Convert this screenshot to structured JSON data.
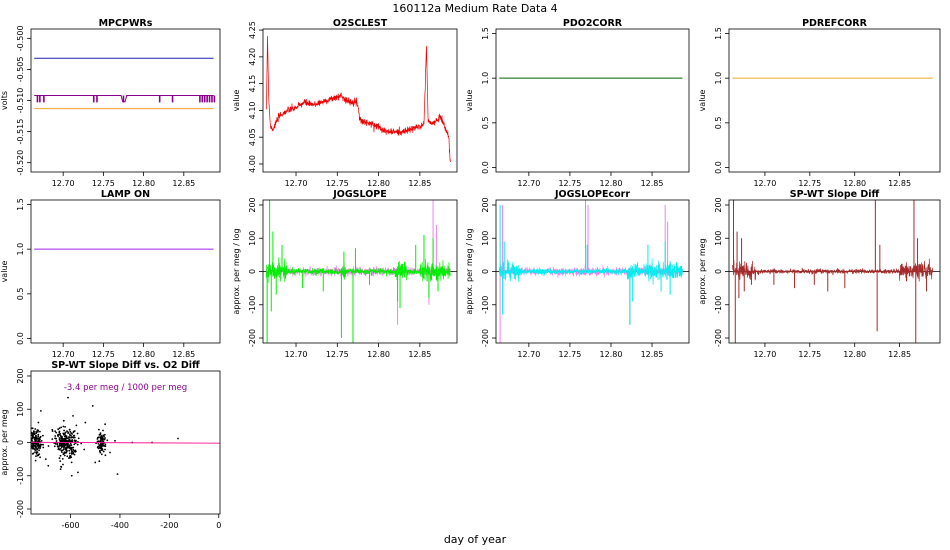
{
  "figure": {
    "title": "160112a   Medium Rate Data 4",
    "xlabel": "day of year"
  },
  "chart_data": [
    {
      "id": "mpcpwrs",
      "type": "line",
      "title": "MPCPWRs",
      "ylabel": "volts",
      "xlim": [
        12.66,
        12.895
      ],
      "ylim": [
        -0.5215,
        -0.4985
      ],
      "xticks": [
        12.7,
        12.75,
        12.8,
        12.85
      ],
      "xticklabels": [
        "12.70",
        "12.75",
        "12.80",
        "12.85"
      ],
      "yticks": [
        -0.52,
        -0.515,
        -0.51,
        -0.505,
        -0.5
      ],
      "yticklabels": [
        "-0.520",
        "-0.515",
        "-0.510",
        "-0.505",
        "-0.500"
      ],
      "series": [
        {
          "color": "#2222bb",
          "style": "flat",
          "value": -0.5032
        },
        {
          "color": "#f5a623",
          "style": "flat",
          "value": -0.5113
        },
        {
          "color": "#8b008b",
          "style": "flat_spikes",
          "value": -0.5092,
          "spike_to": -0.5103,
          "dip": [
            12.772,
            12.779,
            -0.5102
          ],
          "spikes": [
            12.668,
            12.671,
            12.676,
            12.738,
            12.742,
            12.775,
            12.82,
            12.836,
            12.87,
            12.873,
            12.876,
            12.879,
            12.882,
            12.885,
            12.888
          ]
        }
      ]
    },
    {
      "id": "o2sclest",
      "type": "line",
      "title": "O2SCLEST",
      "ylabel": "value",
      "xlim": [
        12.66,
        12.895
      ],
      "ylim": [
        3.985,
        4.252
      ],
      "xticks": [
        12.7,
        12.75,
        12.8,
        12.85
      ],
      "xticklabels": [
        "12.70",
        "12.75",
        "12.80",
        "12.85"
      ],
      "yticks": [
        4.0,
        4.05,
        4.1,
        4.15,
        4.2,
        4.25
      ],
      "yticklabels": [
        "4.00",
        "4.05",
        "4.10",
        "4.15",
        "4.20",
        "4.25"
      ],
      "series": [
        {
          "color": "#ee0000",
          "style": "noisy",
          "noise": 0.007,
          "x": [
            12.664,
            12.6655,
            12.667,
            12.669,
            12.672,
            12.68,
            12.69,
            12.7,
            12.71,
            12.72,
            12.73,
            12.74,
            12.75,
            12.755,
            12.76,
            12.765,
            12.77,
            12.775,
            12.777,
            12.78,
            12.79,
            12.8,
            12.81,
            12.82,
            12.83,
            12.84,
            12.85,
            12.855,
            12.858,
            12.86,
            12.865,
            12.87,
            12.875,
            12.88,
            12.885,
            12.887
          ],
          "y": [
            4.09,
            4.24,
            4.12,
            4.07,
            4.065,
            4.09,
            4.1,
            4.105,
            4.115,
            4.11,
            4.115,
            4.12,
            4.125,
            4.128,
            4.12,
            4.115,
            4.118,
            4.112,
            4.085,
            4.08,
            4.075,
            4.07,
            4.06,
            4.06,
            4.06,
            4.065,
            4.07,
            4.075,
            4.22,
            4.08,
            4.075,
            4.08,
            4.09,
            4.07,
            4.05,
            4.0
          ]
        }
      ]
    },
    {
      "id": "pdo2corr",
      "type": "line",
      "title": "PDO2CORR",
      "ylabel": "value",
      "xlim": [
        12.66,
        12.895
      ],
      "ylim": [
        -0.05,
        1.55
      ],
      "xticks": [
        12.7,
        12.75,
        12.8,
        12.85
      ],
      "xticklabels": [
        "12.70",
        "12.75",
        "12.80",
        "12.85"
      ],
      "yticks": [
        0.0,
        0.5,
        1.0,
        1.5
      ],
      "yticklabels": [
        "0.0",
        "0.5",
        "1.0",
        "1.5"
      ],
      "series": [
        {
          "color": "#006400",
          "style": "flat",
          "value": 1.0
        }
      ]
    },
    {
      "id": "pdrefcorr",
      "type": "line",
      "title": "PDREFCORR",
      "ylabel": "value",
      "xlim": [
        12.66,
        12.895
      ],
      "ylim": [
        -0.05,
        1.55
      ],
      "xticks": [
        12.7,
        12.75,
        12.8,
        12.85
      ],
      "xticklabels": [
        "12.70",
        "12.75",
        "12.80",
        "12.85"
      ],
      "yticks": [
        0.0,
        0.5,
        1.0,
        1.5
      ],
      "yticklabels": [
        "0.0",
        "0.5",
        "1.0",
        "1.5"
      ],
      "series": [
        {
          "color": "#f5a623",
          "style": "flat",
          "value": 1.0
        }
      ]
    },
    {
      "id": "lampon",
      "type": "line",
      "title": "LAMP ON",
      "ylabel": "value",
      "xlim": [
        12.66,
        12.895
      ],
      "ylim": [
        -0.05,
        1.55
      ],
      "xticks": [
        12.7,
        12.75,
        12.8,
        12.85
      ],
      "xticklabels": [
        "12.70",
        "12.75",
        "12.80",
        "12.85"
      ],
      "yticks": [
        0.0,
        0.5,
        1.0,
        1.5
      ],
      "yticklabels": [
        "0.0",
        "0.5",
        "1.0",
        "1.5"
      ],
      "series": [
        {
          "color": "#a020f0",
          "style": "flat",
          "value": 1.0
        }
      ]
    },
    {
      "id": "jogslope",
      "type": "line",
      "title": "JOGSLOPE",
      "ylabel": "approx. per meg / log",
      "xlim": [
        12.66,
        12.895
      ],
      "ylim": [
        -215,
        215
      ],
      "xticks": [
        12.7,
        12.75,
        12.8,
        12.85
      ],
      "xticklabels": [
        "12.70",
        "12.75",
        "12.80",
        "12.85"
      ],
      "yticks": [
        -200,
        -100,
        0,
        100,
        200
      ],
      "yticklabels": [
        "-200",
        "-100",
        "0",
        "100",
        "200"
      ],
      "zeroline": true,
      "series": [
        {
          "color": "#ee82ee",
          "style": "noisy",
          "noise": 14,
          "x": [
            12.664,
            12.887
          ],
          "y": [
            0,
            0
          ],
          "spikes": [
            [
              12.823,
              -160
            ],
            [
              12.861,
              -100
            ],
            [
              12.866,
              215
            ],
            [
              12.87,
              140
            ]
          ]
        },
        {
          "color": "#00ee00",
          "style": "noisy",
          "noise": 10,
          "x": [
            12.664,
            12.887
          ],
          "y": [
            0,
            0
          ],
          "bands": [
            [
              12.664,
              12.69,
              35
            ],
            [
              12.755,
              12.76,
              25
            ],
            [
              12.82,
              12.835,
              30
            ],
            [
              12.85,
              12.887,
              32
            ]
          ],
          "spikes": [
            [
              12.665,
              -215
            ],
            [
              12.668,
              215
            ],
            [
              12.67,
              -120
            ],
            [
              12.672,
              120
            ],
            [
              12.676,
              -70
            ],
            [
              12.683,
              80
            ],
            [
              12.708,
              -50
            ],
            [
              12.733,
              -60
            ],
            [
              12.755,
              -200
            ],
            [
              12.758,
              60
            ],
            [
              12.769,
              -215
            ],
            [
              12.772,
              70
            ],
            [
              12.789,
              -40
            ],
            [
              12.823,
              -90
            ],
            [
              12.826,
              -110
            ],
            [
              12.845,
              80
            ],
            [
              12.855,
              110
            ],
            [
              12.861,
              -80
            ],
            [
              12.866,
              100
            ],
            [
              12.872,
              -60
            ]
          ]
        }
      ]
    },
    {
      "id": "jogslopecorr",
      "type": "line",
      "title": "JOGSLOPEcorr",
      "ylabel": "approx. per meg / log",
      "xlim": [
        12.66,
        12.895
      ],
      "ylim": [
        -215,
        215
      ],
      "xticks": [
        12.7,
        12.75,
        12.8,
        12.85
      ],
      "xticklabels": [
        "12.70",
        "12.75",
        "12.80",
        "12.85"
      ],
      "yticks": [
        -200,
        -100,
        0,
        100,
        200
      ],
      "yticklabels": [
        "-200",
        "-100",
        "0",
        "100",
        "200"
      ],
      "zeroline": true,
      "series": [
        {
          "color": "#ee82ee",
          "style": "noisy",
          "noise": 14,
          "x": [
            12.664,
            12.887
          ],
          "y": [
            0,
            0
          ],
          "spikes": [
            [
              12.665,
              -215
            ],
            [
              12.668,
              200
            ],
            [
              12.769,
              215
            ],
            [
              12.772,
              200
            ],
            [
              12.823,
              -160
            ],
            [
              12.866,
              200
            ],
            [
              12.869,
              150
            ]
          ]
        },
        {
          "color": "#00eeee",
          "style": "noisy",
          "noise": 9,
          "x": [
            12.664,
            12.887
          ],
          "y": [
            0,
            0
          ],
          "bands": [
            [
              12.664,
              12.69,
              30
            ],
            [
              12.82,
              12.835,
              30
            ],
            [
              12.84,
              12.887,
              32
            ]
          ],
          "spikes": [
            [
              12.665,
              200
            ],
            [
              12.668,
              -130
            ],
            [
              12.67,
              90
            ],
            [
              12.769,
              200
            ],
            [
              12.771,
              80
            ],
            [
              12.823,
              -160
            ],
            [
              12.826,
              -90
            ],
            [
              12.845,
              80
            ],
            [
              12.861,
              -60
            ],
            [
              12.866,
              90
            ],
            [
              12.872,
              -70
            ]
          ]
        }
      ]
    },
    {
      "id": "spwt",
      "type": "line",
      "title": "SP-WT Slope Diff",
      "ylabel": "approx. per meg",
      "xlim": [
        12.66,
        12.895
      ],
      "ylim": [
        -215,
        215
      ],
      "xticks": [
        12.7,
        12.75,
        12.8,
        12.85
      ],
      "xticklabels": [
        "12.70",
        "12.75",
        "12.80",
        "12.85"
      ],
      "yticks": [
        -200,
        -100,
        0,
        100,
        200
      ],
      "yticklabels": [
        "-200",
        "-100",
        "0",
        "100",
        "200"
      ],
      "zeroline": true,
      "series": [
        {
          "color": "#a52a2a",
          "style": "noisy",
          "noise": 8,
          "x": [
            12.664,
            12.887
          ],
          "y": [
            0,
            0
          ],
          "bands": [
            [
              12.664,
              12.69,
              30
            ],
            [
              12.85,
              12.887,
              30
            ]
          ],
          "spikes": [
            [
              12.665,
              215
            ],
            [
              12.667,
              -215
            ],
            [
              12.669,
              120
            ],
            [
              12.671,
              -80
            ],
            [
              12.674,
              100
            ],
            [
              12.677,
              -60
            ],
            [
              12.685,
              -40
            ],
            [
              12.71,
              -40
            ],
            [
              12.733,
              -50
            ],
            [
              12.755,
              -40
            ],
            [
              12.77,
              -60
            ],
            [
              12.789,
              -50
            ],
            [
              12.823,
              215
            ],
            [
              12.825,
              -180
            ],
            [
              12.828,
              80
            ],
            [
              12.866,
              215
            ],
            [
              12.868,
              -215
            ],
            [
              12.87,
              100
            ],
            [
              12.88,
              -60
            ]
          ]
        }
      ]
    },
    {
      "id": "scatter",
      "type": "scatter",
      "title": "SP-WT Slope Diff vs. O2 Diff",
      "ylabel": "approx. per meg",
      "xlim": [
        -760,
        5
      ],
      "ylim": [
        -215,
        215
      ],
      "xticks": [
        -600,
        -400,
        -200,
        0
      ],
      "xticklabels": [
        "-600",
        "-400",
        "-200",
        "0"
      ],
      "yticks": [
        -200,
        -100,
        0,
        100,
        200
      ],
      "yticklabels": [
        "-200",
        "-100",
        "0",
        "100",
        "200"
      ],
      "annotation": {
        "text": "-3.4 per meg / 1000 per meg",
        "color": "#8b008b"
      },
      "fit": {
        "color": "#ff1493",
        "slope": -0.0034,
        "intercept": -2
      },
      "point_color": "#000000",
      "clusters": [
        {
          "cx": -740,
          "sx": 12,
          "sy": 18,
          "n": 160
        },
        {
          "cx": -620,
          "sx": 22,
          "sy": 22,
          "n": 260
        },
        {
          "cx": -475,
          "sx": 10,
          "sy": 16,
          "n": 90
        }
      ],
      "outliers": [
        [
          -730,
          60
        ],
        [
          -690,
          -70
        ],
        [
          -650,
          40
        ],
        [
          -640,
          -80
        ],
        [
          -610,
          135
        ],
        [
          -590,
          80
        ],
        [
          -570,
          -90
        ],
        [
          -540,
          60
        ],
        [
          -510,
          110
        ],
        [
          -500,
          -60
        ],
        [
          -460,
          55
        ],
        [
          -440,
          -30
        ],
        [
          -420,
          5
        ],
        [
          -410,
          -95
        ],
        [
          -350,
          0
        ],
        [
          -270,
          0
        ],
        [
          -165,
          12
        ],
        [
          -720,
          95
        ],
        [
          -700,
          -50
        ],
        [
          -595,
          -100
        ]
      ]
    }
  ]
}
